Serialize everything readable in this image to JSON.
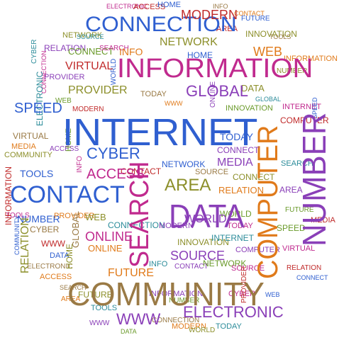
{
  "word_cloud": {
    "colors": {
      "blue": "#2f5fd0",
      "purple": "#8a3fb8",
      "magenta": "#c02a8e",
      "olive": "#8c8f2a",
      "brown": "#9a7a45",
      "orange": "#e07a1a",
      "teal": "#2c8c9a",
      "green": "#6a9a2a",
      "red": "#c02a2a"
    },
    "words": [
      {
        "text": "INTERNET",
        "color": "blue"
      },
      {
        "text": "INFORMATION",
        "color": "magenta"
      },
      {
        "text": "COMMUNITY",
        "color": "brown"
      },
      {
        "text": "CONNECTION",
        "color": "blue"
      },
      {
        "text": "CONTACT",
        "color": "blue"
      },
      {
        "text": "DATA",
        "color": "purple"
      },
      {
        "text": "SEARCH",
        "color": "magenta"
      },
      {
        "text": "COMPUTER",
        "color": "orange"
      },
      {
        "text": "NUMBER",
        "color": "purple"
      },
      {
        "text": "ELECTRONIC",
        "color": "purple"
      },
      {
        "text": "MODERN",
        "color": "red"
      },
      {
        "text": "NETWORK",
        "color": "olive"
      },
      {
        "text": "GLOBAL",
        "color": "purple"
      },
      {
        "text": "AREA",
        "color": "olive"
      },
      {
        "text": "SPEED",
        "color": "blue"
      },
      {
        "text": "CYBER",
        "color": "blue"
      },
      {
        "text": "ACCESS",
        "color": "magenta"
      },
      {
        "text": "WORLD",
        "color": "purple"
      },
      {
        "text": "SOURCE",
        "color": "purple"
      },
      {
        "text": "ONLINE",
        "color": "magenta"
      },
      {
        "text": "FUTURE",
        "color": "orange"
      },
      {
        "text": "VIRTUAL",
        "color": "red"
      },
      {
        "text": "PROVIDER",
        "color": "olive"
      },
      {
        "text": "HOME",
        "color": "blue"
      },
      {
        "text": "TODAY",
        "color": "blue"
      },
      {
        "text": "RELATION",
        "color": "olive"
      },
      {
        "text": "INNOVATION",
        "color": "olive"
      },
      {
        "text": "TOOLS",
        "color": "blue"
      },
      {
        "text": "MEDIA",
        "color": "purple"
      },
      {
        "text": "WEB",
        "color": "orange"
      },
      {
        "text": "INFO",
        "color": "orange"
      },
      {
        "text": "WWW",
        "color": "purple"
      },
      {
        "text": "CONNECT",
        "color": "purple"
      }
    ]
  }
}
